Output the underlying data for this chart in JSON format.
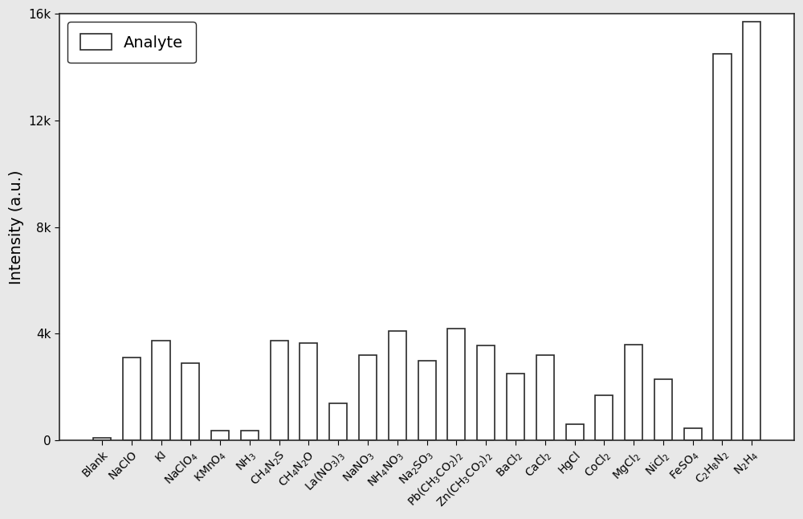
{
  "categories": [
    "Blank",
    "NaClO",
    "KI",
    "NaClO$_4$",
    "KMnO$_4$",
    "NH$_3$",
    "CH$_4$N$_2$S",
    "CH$_4$N$_2$O",
    "La(NO$_3$)$_3$",
    "NaNO$_3$",
    "NH$_4$NO$_3$",
    "Na$_2$SO$_3$",
    "Pb(CH$_3$CO$_2$)$_2$",
    "Zn(CH$_3$CO$_2$)$_2$",
    "BaCl$_2$",
    "CaCl$_2$",
    "HgCl",
    "CoCl$_2$",
    "MgCl$_2$",
    "NiCl$_2$",
    "FeSO$_4$",
    "C$_2$H$_8$N$_2$",
    "N$_2$H$_4$"
  ],
  "values": [
    100,
    3100,
    3750,
    2900,
    350,
    350,
    3750,
    3650,
    1400,
    3200,
    4100,
    3000,
    4200,
    3550,
    2500,
    3200,
    600,
    1700,
    3600,
    2300,
    450,
    14500,
    15700
  ],
  "bar_color": "#ffffff",
  "bar_edgecolor": "#2a2a2a",
  "ylabel": "Intensity (a.u.)",
  "ylim": [
    0,
    16000
  ],
  "yticks": [
    0,
    4000,
    8000,
    12000,
    16000
  ],
  "ytick_labels": [
    "0",
    "4k",
    "8k",
    "12k",
    "16k"
  ],
  "legend_label": "Analyte",
  "background_color": "#e8e8e8",
  "axes_background": "#ffffff",
  "label_fontsize": 14,
  "tick_fontsize": 11
}
